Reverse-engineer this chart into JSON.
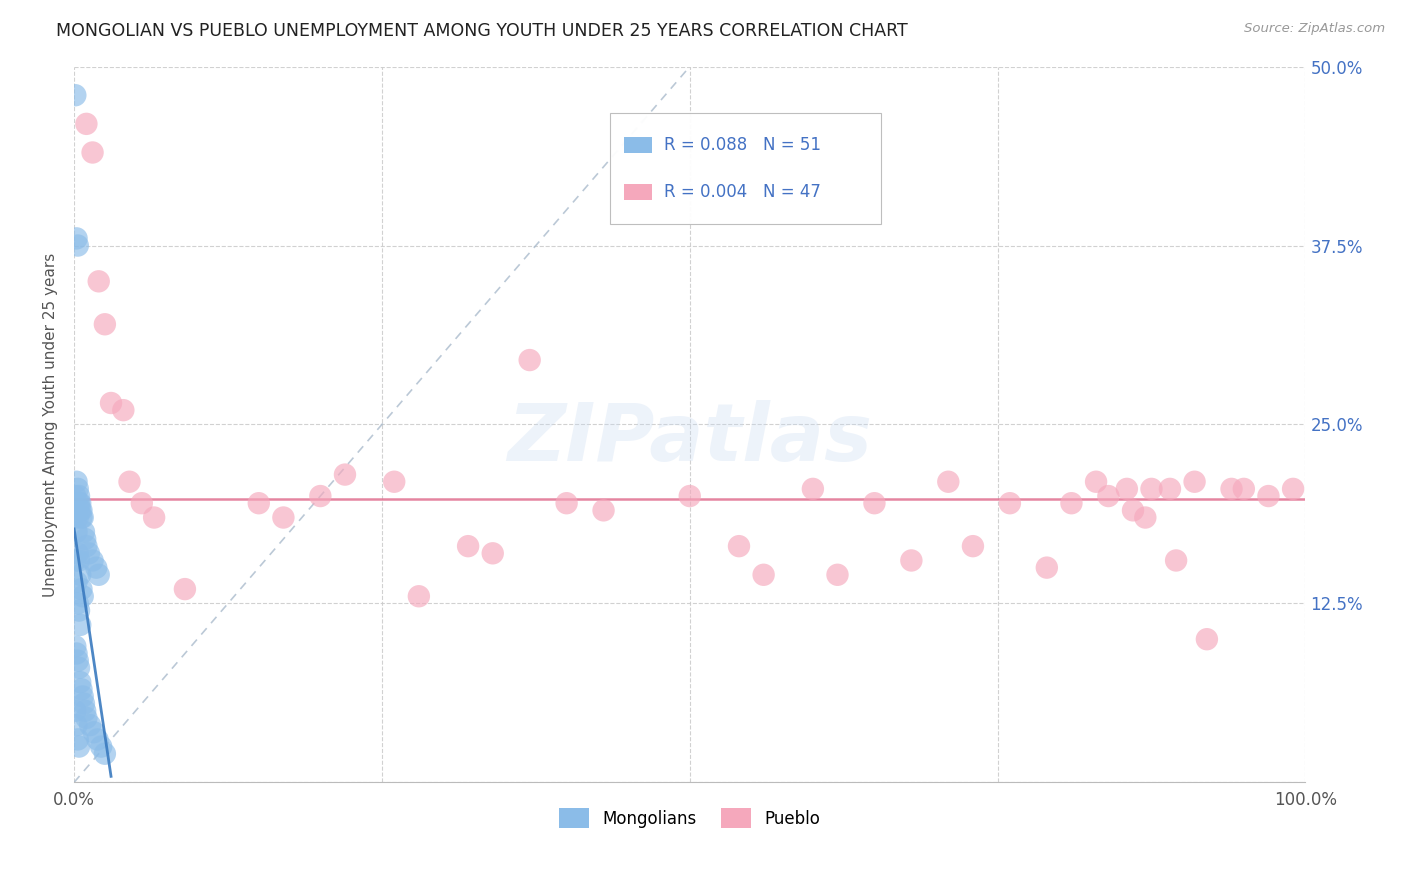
{
  "title": "MONGOLIAN VS PUEBLO UNEMPLOYMENT AMONG YOUTH UNDER 25 YEARS CORRELATION CHART",
  "source": "Source: ZipAtlas.com",
  "ylabel": "Unemployment Among Youth under 25 years",
  "xlim": [
    0.0,
    1.0
  ],
  "ylim": [
    0.0,
    0.5
  ],
  "ytick_vals": [
    0.0,
    0.125,
    0.25,
    0.375,
    0.5
  ],
  "ytick_labels_right": [
    "",
    "12.5%",
    "25.0%",
    "37.5%",
    "50.0%"
  ],
  "xtick_vals": [
    0.0,
    0.25,
    0.5,
    0.75,
    1.0
  ],
  "xtick_labels": [
    "0.0%",
    "",
    "",
    "",
    "100.0%"
  ],
  "legend_mongolian_text": "R = 0.088   N = 51",
  "legend_pueblo_text": "R = 0.004   N = 47",
  "mongolian_color": "#8bbce8",
  "pueblo_color": "#f5a8bc",
  "blue_trend_color": "#3a7abf",
  "pueblo_trend_color": "#e07090",
  "gray_diag_color": "#aabbcc",
  "background_color": "#ffffff",
  "grid_color": "#cccccc",
  "watermark": "ZIPatlas",
  "tick_label_color": "#4472c4",
  "mongolian_x": [
    0.001,
    0.001,
    0.001,
    0.001,
    0.001,
    0.002,
    0.002,
    0.002,
    0.002,
    0.002,
    0.002,
    0.003,
    0.003,
    0.003,
    0.003,
    0.003,
    0.003,
    0.003,
    0.004,
    0.004,
    0.004,
    0.004,
    0.004,
    0.004,
    0.005,
    0.005,
    0.005,
    0.005,
    0.005,
    0.006,
    0.006,
    0.006,
    0.006,
    0.007,
    0.007,
    0.007,
    0.008,
    0.008,
    0.009,
    0.009,
    0.01,
    0.01,
    0.012,
    0.013,
    0.015,
    0.016,
    0.018,
    0.019,
    0.02,
    0.022,
    0.025
  ],
  "mongolian_y": [
    0.48,
    0.2,
    0.155,
    0.095,
    0.05,
    0.38,
    0.21,
    0.175,
    0.14,
    0.09,
    0.04,
    0.375,
    0.205,
    0.185,
    0.16,
    0.125,
    0.085,
    0.03,
    0.2,
    0.195,
    0.155,
    0.12,
    0.08,
    0.025,
    0.195,
    0.19,
    0.145,
    0.11,
    0.07,
    0.19,
    0.185,
    0.135,
    0.065,
    0.185,
    0.13,
    0.06,
    0.175,
    0.055,
    0.17,
    0.05,
    0.165,
    0.045,
    0.16,
    0.04,
    0.155,
    0.035,
    0.15,
    0.03,
    0.145,
    0.025,
    0.02
  ],
  "pueblo_x": [
    0.01,
    0.015,
    0.02,
    0.025,
    0.03,
    0.04,
    0.045,
    0.055,
    0.065,
    0.09,
    0.15,
    0.17,
    0.2,
    0.22,
    0.26,
    0.28,
    0.32,
    0.34,
    0.37,
    0.4,
    0.43,
    0.5,
    0.54,
    0.56,
    0.6,
    0.62,
    0.65,
    0.68,
    0.71,
    0.73,
    0.76,
    0.79,
    0.81,
    0.83,
    0.84,
    0.855,
    0.86,
    0.87,
    0.875,
    0.89,
    0.895,
    0.91,
    0.92,
    0.94,
    0.95,
    0.97,
    0.99
  ],
  "pueblo_y": [
    0.46,
    0.44,
    0.35,
    0.32,
    0.265,
    0.26,
    0.21,
    0.195,
    0.185,
    0.135,
    0.195,
    0.185,
    0.2,
    0.215,
    0.21,
    0.13,
    0.165,
    0.16,
    0.295,
    0.195,
    0.19,
    0.2,
    0.165,
    0.145,
    0.205,
    0.145,
    0.195,
    0.155,
    0.21,
    0.165,
    0.195,
    0.15,
    0.195,
    0.21,
    0.2,
    0.205,
    0.19,
    0.185,
    0.205,
    0.205,
    0.155,
    0.21,
    0.1,
    0.205,
    0.205,
    0.2,
    0.205
  ],
  "pueblo_trend_y": 0.198,
  "mong_trend_x0": 0.0,
  "mong_trend_y0": 0.0,
  "mong_trend_x1": 0.5,
  "mong_trend_y1": 0.5
}
